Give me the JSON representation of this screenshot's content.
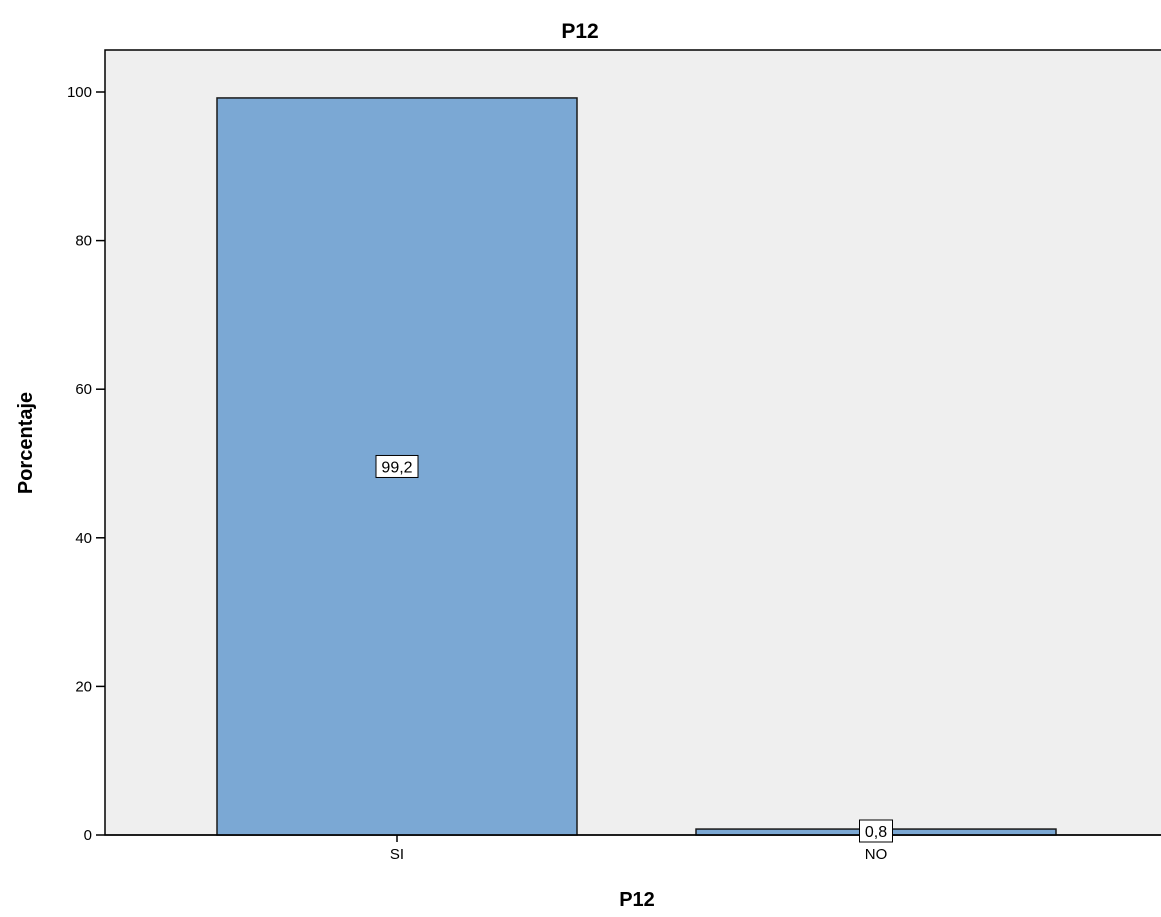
{
  "chart_data": {
    "type": "bar",
    "title": "P12",
    "xlabel": "P12",
    "ylabel": "Porcentaje",
    "categories": [
      "SI",
      "NO"
    ],
    "values": [
      99.2,
      0.8
    ],
    "data_labels": [
      "99,2",
      "0,8"
    ],
    "ylim": [
      0,
      100
    ],
    "yticks": [
      0,
      20,
      40,
      60,
      80,
      100
    ],
    "ytick_labels": [
      "0",
      "20",
      "40",
      "60",
      "80",
      "100"
    ],
    "grid": false,
    "legend": "none",
    "colors": {
      "bar_fill": "#7ba8d4",
      "bar_stroke": "#1a1a1a",
      "plot_background": "#efefef",
      "label_box": "#ffffff"
    }
  }
}
